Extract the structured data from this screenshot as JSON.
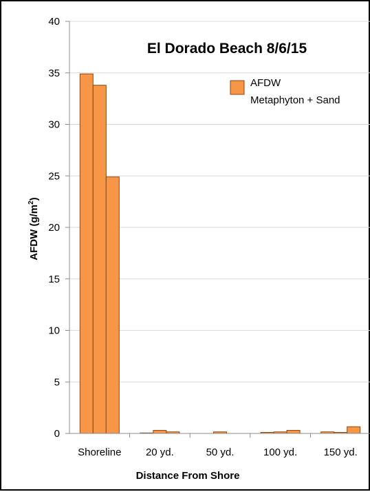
{
  "chart_data": {
    "type": "bar",
    "title": "El Dorado Beach 8/6/15",
    "xlabel": "Distance From Shore",
    "ylabel": "AFDW (g/m²)",
    "ylim": [
      0,
      40
    ],
    "yticks": [
      0,
      5,
      10,
      15,
      20,
      25,
      30,
      35,
      40
    ],
    "categories": [
      "Shoreline",
      "20 yd.",
      "50 yd.",
      "100 yd.",
      "150 yd."
    ],
    "values_per_category": [
      [
        34.9,
        33.8,
        24.9
      ],
      [
        0.05,
        0.3,
        0.15
      ],
      [
        0,
        0.15,
        0
      ],
      [
        0.1,
        0.15,
        0.3
      ],
      [
        0.15,
        0.1,
        0.65
      ]
    ],
    "legend": [
      "AFDW",
      "Metaphyton + Sand"
    ],
    "legend_position": "top-right",
    "grid": true,
    "colors": {
      "bar_fill": "#F79646",
      "bar_stroke": "#8B4513",
      "grid": "#d9d9d9",
      "axis": "#8c8c8c"
    }
  }
}
